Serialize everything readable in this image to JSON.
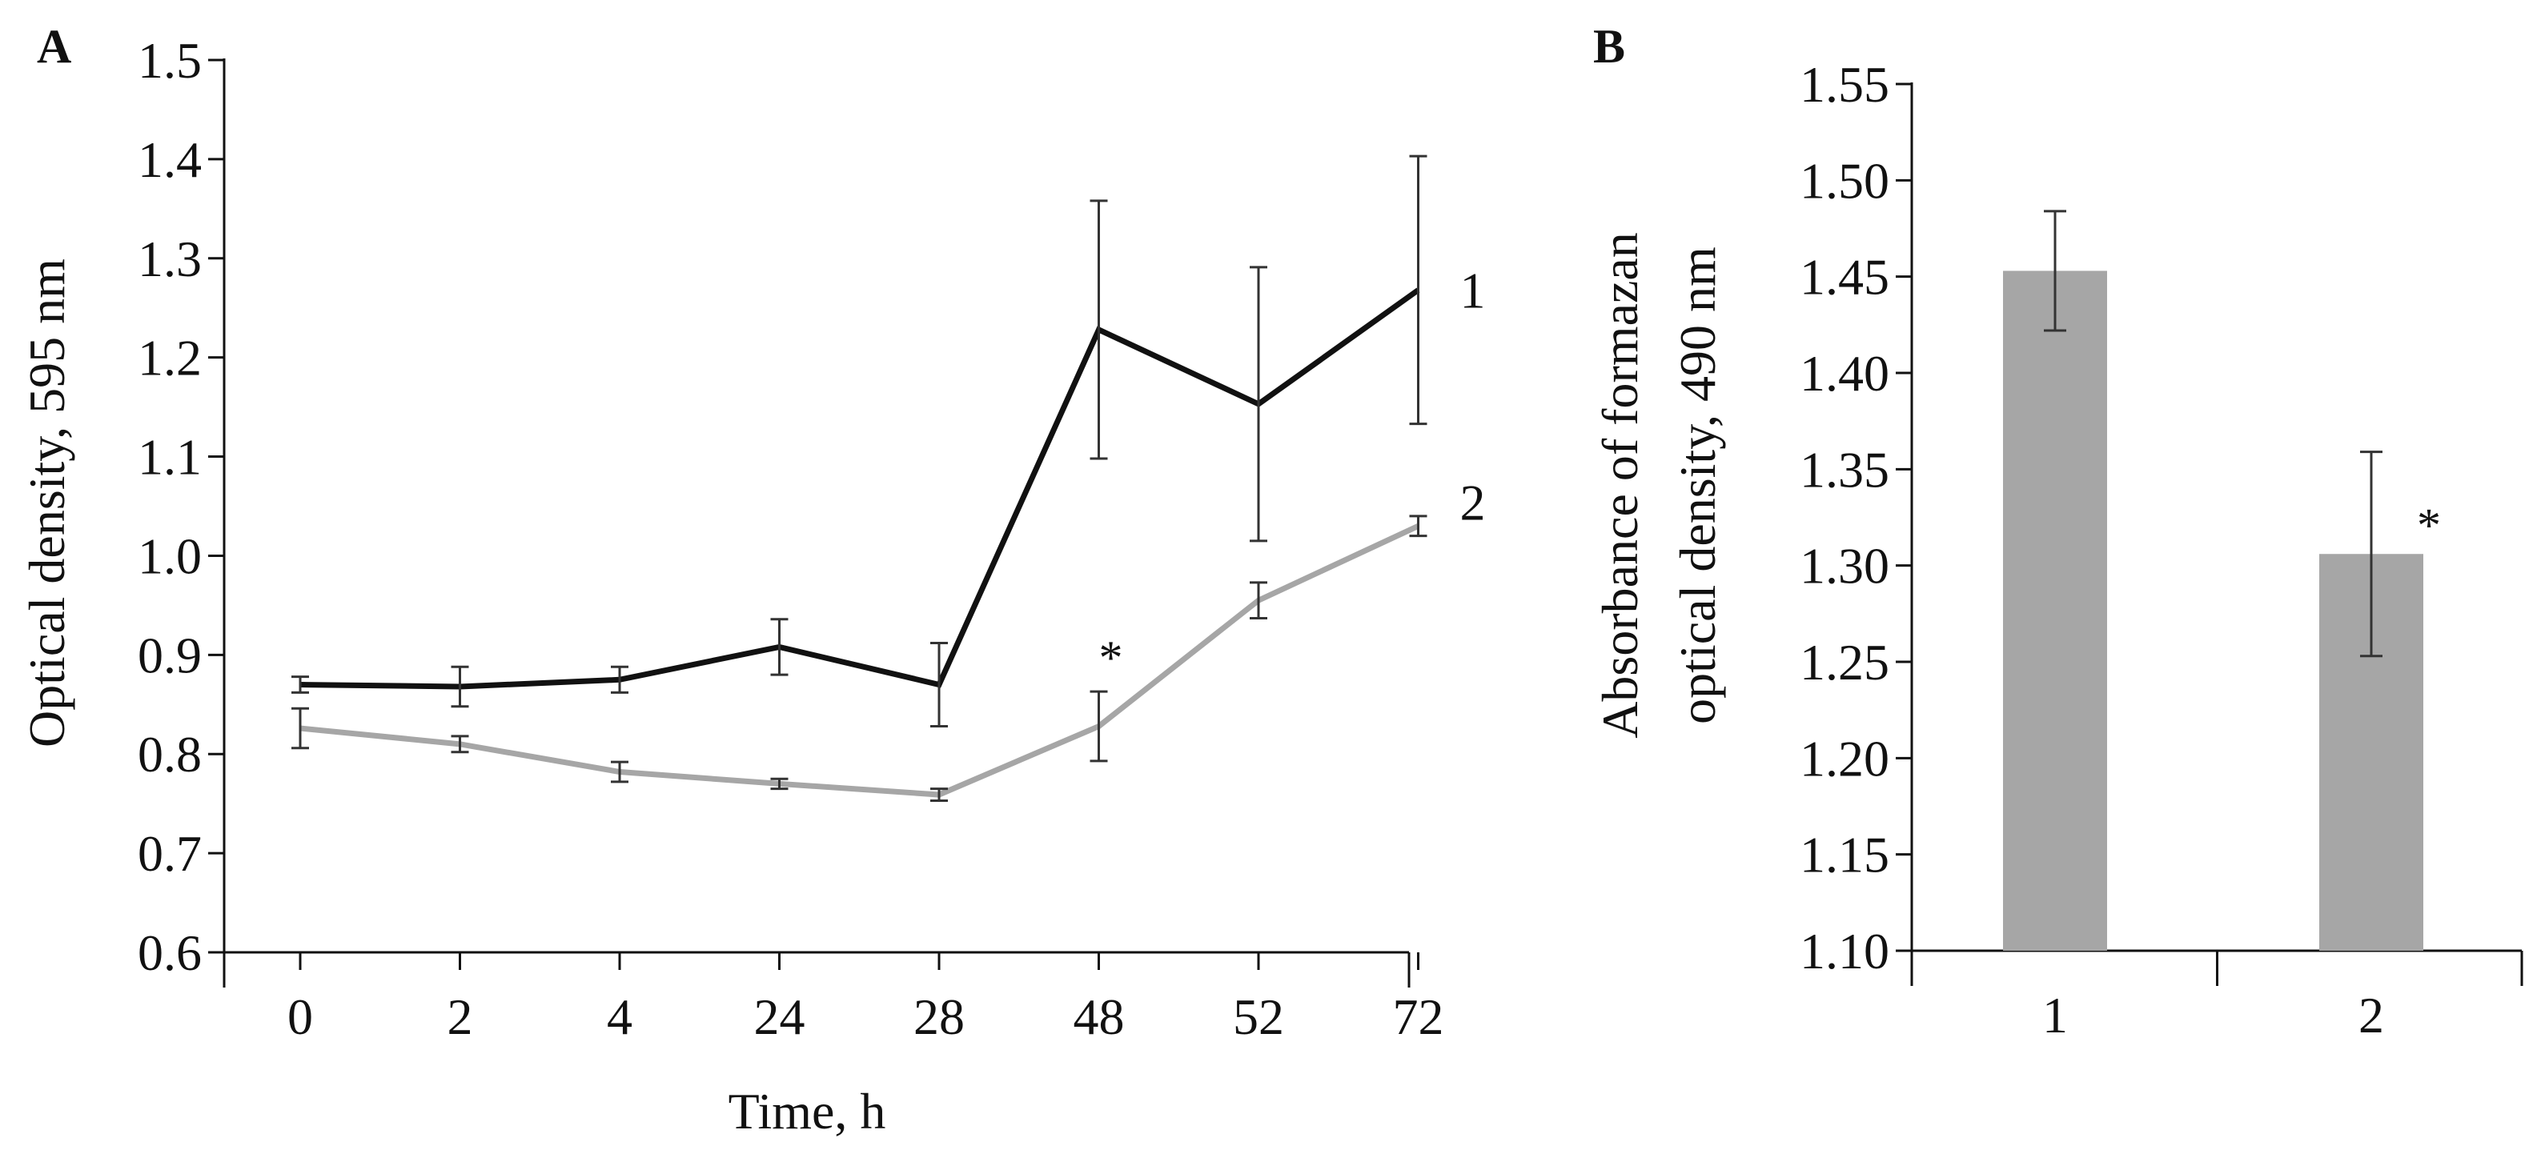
{
  "colors": {
    "series1": "#111111",
    "series2": "#a6a6a6",
    "bars": "#a6a6a6",
    "axis": "#111111",
    "error_bar": "#333333"
  },
  "chart_data": [
    {
      "panel": "A",
      "type": "line",
      "title": "",
      "xlabel": "Time, h",
      "ylabel": "Optical density, 595 nm",
      "ylim": [
        0.6,
        1.5
      ],
      "yticks": [
        "0.6",
        "0.7",
        "0.8",
        "0.9",
        "1.0",
        "1.1",
        "1.2",
        "1.3",
        "1.4",
        "1.5"
      ],
      "categories": [
        "0",
        "2",
        "4",
        "24",
        "28",
        "48",
        "52",
        "72"
      ],
      "series": [
        {
          "name": "1",
          "label": "1",
          "values": [
            0.87,
            0.868,
            0.875,
            0.908,
            0.87,
            1.228,
            1.153,
            1.268
          ],
          "errors": [
            0.008,
            0.02,
            0.013,
            0.028,
            0.042,
            0.13,
            0.138,
            0.135
          ]
        },
        {
          "name": "2",
          "label": "2",
          "values": [
            0.826,
            0.81,
            0.782,
            0.77,
            0.759,
            0.828,
            0.955,
            1.03
          ],
          "errors": [
            0.02,
            0.008,
            0.01,
            0.005,
            0.006,
            0.035,
            0.018,
            0.01
          ]
        }
      ],
      "annotations": [
        {
          "text": "*",
          "category": "48",
          "value": 0.905
        }
      ]
    },
    {
      "panel": "B",
      "type": "bar",
      "title": "",
      "xlabel": "",
      "ylabel": "Absorbance of formazan optical density, 490 nm",
      "ylabel_lines": [
        "Absorbance of formazan",
        "optical density, 490 nm"
      ],
      "ylim": [
        1.1,
        1.55
      ],
      "yticks": [
        "1.10",
        "1.15",
        "1.20",
        "1.25",
        "1.30",
        "1.35",
        "1.40",
        "1.45",
        "1.50",
        "1.55"
      ],
      "categories": [
        "1",
        "2"
      ],
      "values": [
        1.453,
        1.306
      ],
      "errors": [
        0.031,
        0.053
      ],
      "annotations": [
        {
          "text": "*",
          "category": "2",
          "value": 1.325
        }
      ]
    }
  ]
}
